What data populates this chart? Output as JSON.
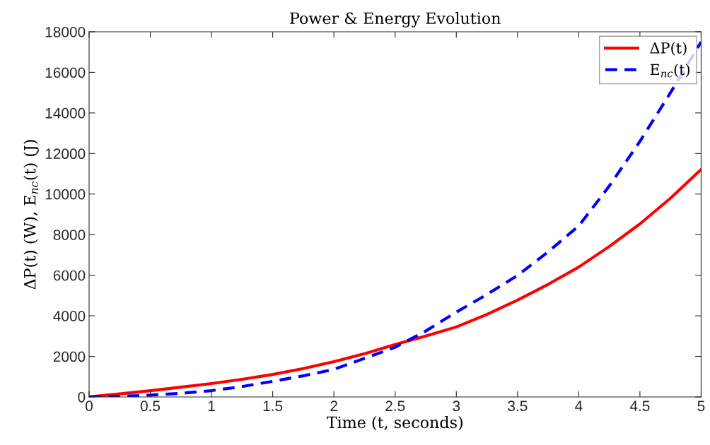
{
  "chart_data": {
    "type": "line",
    "title": "Power & Energy Evolution",
    "xlabel": "Time (t, seconds)",
    "ylabel": "ΔP(t) (W), E$_{nc}$(t) (J)",
    "x": [
      0,
      0.25,
      0.5,
      0.75,
      1,
      1.25,
      1.5,
      1.75,
      2,
      2.25,
      2.5,
      2.75,
      3,
      3.25,
      3.5,
      3.75,
      4,
      4.25,
      4.5,
      4.75,
      5
    ],
    "series": [
      {
        "name": "ΔP(t)",
        "color": "#ff0000",
        "line_style": "solid",
        "values": [
          0,
          150,
          310,
          480,
          660,
          870,
          1110,
          1400,
          1740,
          2130,
          2580,
          3000,
          3450,
          4070,
          4770,
          5550,
          6400,
          7420,
          8530,
          9800,
          11210
        ]
      },
      {
        "name": "E$_{nc}$(t)",
        "color": "#0000ff",
        "line_style": "dashed",
        "values": [
          0,
          30,
          90,
          180,
          310,
          510,
          770,
          1040,
          1360,
          1900,
          2450,
          3250,
          4180,
          5050,
          5990,
          7150,
          8430,
          10400,
          12600,
          15000,
          17500
        ]
      }
    ],
    "xlim": [
      0,
      5
    ],
    "xticks": [
      0,
      0.5,
      1,
      1.5,
      2,
      2.5,
      3,
      3.5,
      4,
      4.5,
      5
    ],
    "ylim": [
      0,
      18000
    ],
    "yticks": [
      0,
      2000,
      4000,
      6000,
      8000,
      10000,
      12000,
      14000,
      16000,
      18000
    ],
    "grid": false,
    "legend": "top right",
    "marker": "none"
  }
}
